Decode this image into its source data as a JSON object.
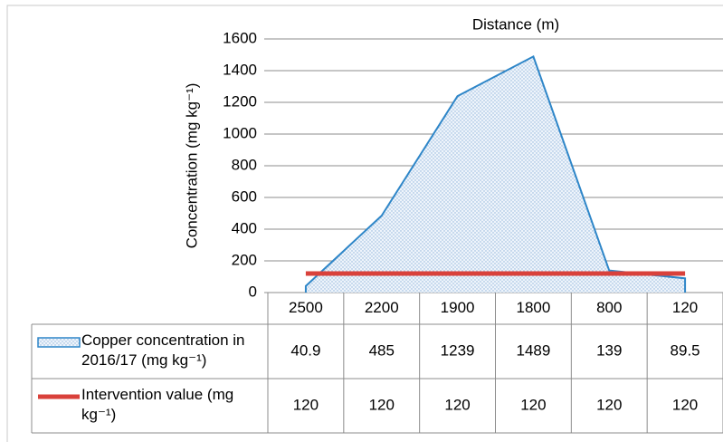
{
  "chart_data": {
    "type": "area",
    "x_label": "Distance (m)",
    "y_label": "Concentration (mg kg⁻¹)",
    "categories": [
      "2500",
      "2200",
      "1900",
      "1800",
      "800",
      "120"
    ],
    "series": [
      {
        "name": "Copper concentration in 2016/17 (mg kg⁻¹)",
        "type": "area",
        "color": "#2e86c8",
        "values": [
          40.9,
          485,
          1239,
          1489,
          139,
          89.5
        ]
      },
      {
        "name": "Intervention value (mg kg⁻¹)",
        "type": "line",
        "color": "#d9413b",
        "values": [
          120,
          120,
          120,
          120,
          120,
          120
        ]
      }
    ],
    "ylim": [
      0,
      1600
    ],
    "yticks": [
      0,
      200,
      400,
      600,
      800,
      1000,
      1200,
      1400,
      1600
    ],
    "grid": true
  }
}
